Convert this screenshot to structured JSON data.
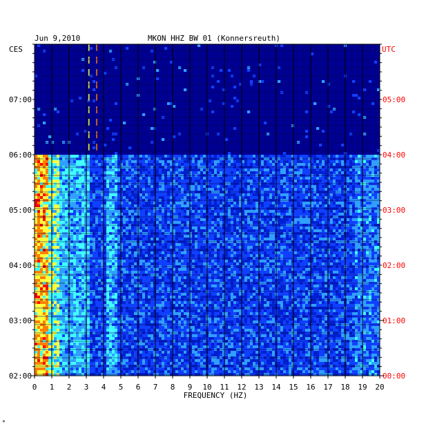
{
  "chart_data": {
    "type": "heatmap",
    "date": "Jun 9,2010",
    "title": "MKON HHZ BW 01 (Konnersreuth)",
    "xlabel": "FREQUENCY (HZ)",
    "left_label": "CES",
    "right_label": "UTC",
    "x_range": [
      0,
      20
    ],
    "x_ticks": [
      "0",
      "1",
      "2",
      "3",
      "4",
      "5",
      "6",
      "7",
      "8",
      "9",
      "10",
      "11",
      "12",
      "13",
      "14",
      "15",
      "16",
      "17",
      "18",
      "19",
      "20"
    ],
    "left_ticks": [
      "07:00",
      "06:00",
      "05:00",
      "04:00",
      "03:00",
      "02:00"
    ],
    "right_ticks": [
      "05:00",
      "04:00",
      "03:00",
      "02:00",
      "01:00",
      "00:00"
    ],
    "time_range_utc": [
      "00:00",
      "05:58"
    ],
    "data_gap_after_utc": "04:00",
    "colorscale": [
      "#0000a0",
      "#0020d0",
      "#1040ff",
      "#30a0ff",
      "#40ffff",
      "#ffff40",
      "#ff8000",
      "#ff0000"
    ],
    "background_color": "#000090",
    "tick_color_right": "#ff0000",
    "footer_mark": "*"
  }
}
